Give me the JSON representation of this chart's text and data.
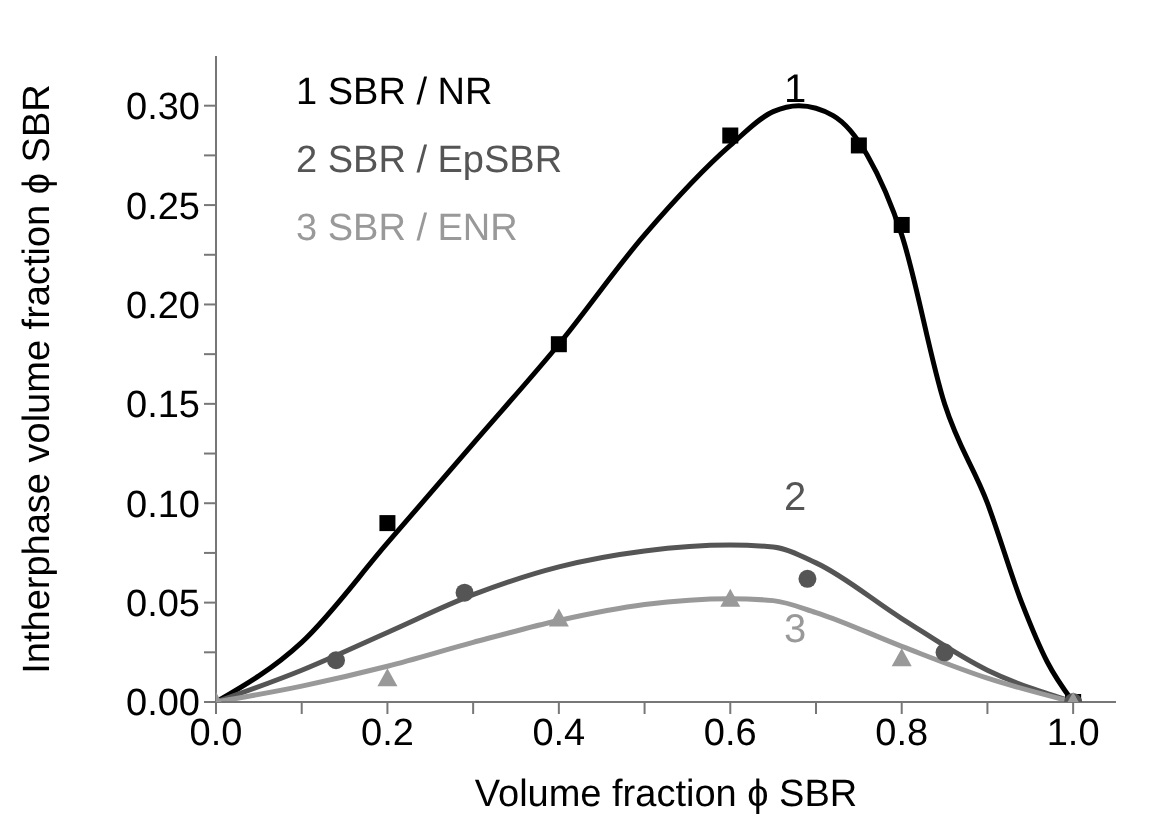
{
  "chart_data": {
    "type": "scatter",
    "xlabel": "Volume fraction ϕ SBR",
    "ylabel": "Intherphase volume fraction ϕ SBR",
    "xlim": [
      0,
      1.05
    ],
    "xticks": [
      {
        "value": 0,
        "label": "0.0"
      },
      {
        "value": 0.1,
        "label": null
      },
      {
        "value": 0.2,
        "label": "0.2"
      },
      {
        "value": 0.3,
        "label": null
      },
      {
        "value": 0.4,
        "label": "0.4"
      },
      {
        "value": 0.5,
        "label": null
      },
      {
        "value": 0.6,
        "label": "0.6"
      },
      {
        "value": 0.7,
        "label": null
      },
      {
        "value": 0.8,
        "label": "0.8"
      },
      {
        "value": 0.9,
        "label": null
      },
      {
        "value": 1,
        "label": "1.0"
      }
    ],
    "ylim": [
      0,
      0.325
    ],
    "yticks": [
      {
        "value": 0,
        "label": "0.00"
      },
      {
        "value": 0.025,
        "label": null
      },
      {
        "value": 0.05,
        "label": "0.05"
      },
      {
        "value": 0.075,
        "label": null
      },
      {
        "value": 0.1,
        "label": "0.10"
      },
      {
        "value": 0.125,
        "label": null
      },
      {
        "value": 0.15,
        "label": "0.15"
      },
      {
        "value": 0.175,
        "label": null
      },
      {
        "value": 0.2,
        "label": "0.20"
      },
      {
        "value": 0.225,
        "label": null
      },
      {
        "value": 0.25,
        "label": "0.25"
      },
      {
        "value": 0.275,
        "label": null
      },
      {
        "value": 0.3,
        "label": "0.30"
      }
    ],
    "legend": "top left",
    "series": [
      {
        "type": "scatter",
        "name": "1 SBR / NR",
        "color": "#000000",
        "marker": "square",
        "x": [
          0.2,
          0.4,
          0.6,
          0.75,
          0.8,
          1.0
        ],
        "values": [
          0.09,
          0.18,
          0.285,
          0.28,
          0.24,
          0
        ]
      },
      {
        "type": "scatter",
        "name": "2 SBR / EpSBR",
        "color": "#555555",
        "marker": "circle",
        "x": [
          0.14,
          0.29,
          0.69,
          0.85,
          1.0
        ],
        "values": [
          0.021,
          0.055,
          0.062,
          0.025,
          0
        ]
      },
      {
        "type": "scatter",
        "name": "3 SBR / ENR",
        "color": "#999999",
        "marker": "triangle",
        "x": [
          0,
          0.2,
          0.4,
          0.6,
          0.8,
          1.0
        ],
        "values": [
          0,
          0.012,
          0.042,
          0.052,
          0.022,
          0
        ]
      },
      {
        "type": "line",
        "color": "#000000",
        "marker": "none",
        "x": [
          0,
          0.1,
          0.2,
          0.3,
          0.4,
          0.5,
          0.6,
          0.65,
          0.68,
          0.72,
          0.76,
          0.8,
          0.85,
          0.9,
          0.94,
          0.97,
          1.0
        ],
        "values": [
          0,
          0.03,
          0.08,
          0.13,
          0.18,
          0.235,
          0.28,
          0.297,
          0.3,
          0.295,
          0.275,
          0.235,
          0.15,
          0.1,
          0.05,
          0.02,
          0
        ]
      },
      {
        "type": "line",
        "color": "#555555",
        "marker": "none",
        "x": [
          0,
          0.1,
          0.2,
          0.3,
          0.4,
          0.5,
          0.6,
          0.65,
          0.7,
          0.8,
          0.9,
          1.0
        ],
        "values": [
          0,
          0.016,
          0.035,
          0.054,
          0.068,
          0.076,
          0.079,
          0.078,
          0.07,
          0.042,
          0.016,
          0
        ]
      },
      {
        "type": "line",
        "color": "#999999",
        "marker": "none",
        "x": [
          0,
          0.1,
          0.2,
          0.3,
          0.4,
          0.5,
          0.6,
          0.65,
          0.7,
          0.8,
          0.9,
          1.0
        ],
        "values": [
          0,
          0.008,
          0.018,
          0.03,
          0.041,
          0.049,
          0.052,
          0.051,
          0.045,
          0.028,
          0.012,
          0
        ]
      }
    ],
    "annotations": [
      "1",
      "2",
      "3"
    ]
  }
}
